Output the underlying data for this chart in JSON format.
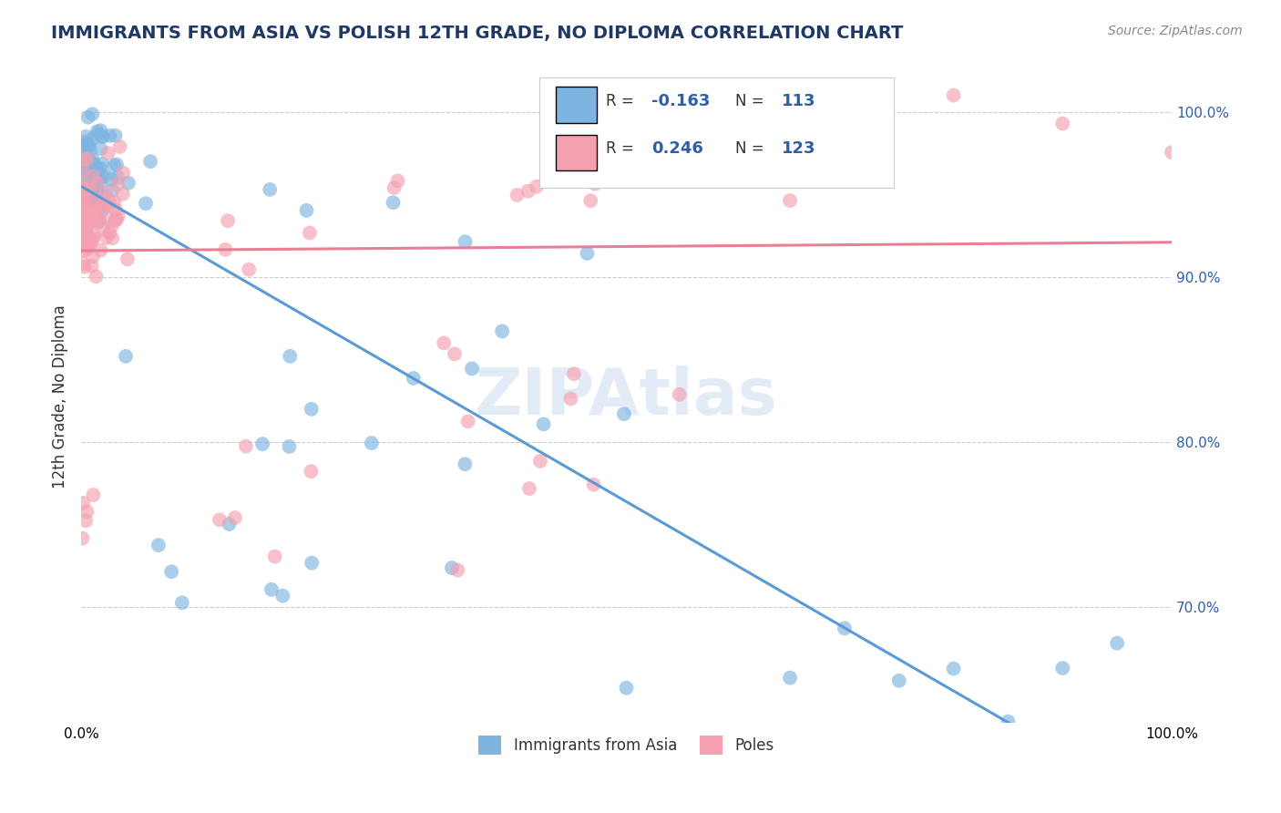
{
  "title": "IMMIGRANTS FROM ASIA VS POLISH 12TH GRADE, NO DIPLOMA CORRELATION CHART",
  "source": "Source: ZipAtlas.com",
  "ylabel": "12th Grade, No Diploma",
  "xlim": [
    0,
    1.0
  ],
  "ylim": [
    0.63,
    1.025
  ],
  "right_yticks": [
    0.7,
    0.8,
    0.9,
    1.0
  ],
  "right_yticklabels": [
    "70.0%",
    "80.0%",
    "90.0%",
    "100.0%"
  ],
  "color_blue": "#7EB5E0",
  "color_pink": "#F4A0B0",
  "color_blue_line": "#5B9BD5",
  "color_pink_line": "#E87F96",
  "color_text_blue": "#2E5FA3",
  "color_title": "#1F3864",
  "background_color": "#FFFFFF",
  "grid_color": "#CCCCCC",
  "series1_label": "Immigrants from Asia",
  "series2_label": "Poles",
  "legend_r1": "-0.163",
  "legend_n1": "113",
  "legend_r2": "0.246",
  "legend_n2": "123"
}
